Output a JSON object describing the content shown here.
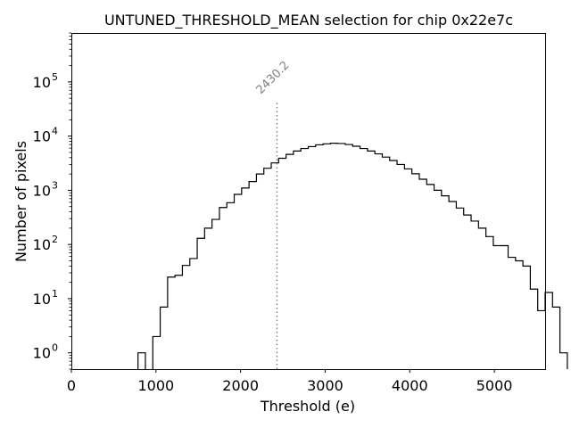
{
  "chart_data": {
    "type": "histogram",
    "title": "UNTUNED_THRESHOLD_MEAN selection for chip 0x22e7c",
    "xlabel": "Threshold (e)",
    "ylabel": "Number of pixels",
    "xlim": [
      0,
      5600
    ],
    "ylim": [
      0.5,
      800000
    ],
    "yscale": "log",
    "grid": false,
    "xticks": [
      0,
      1000,
      2000,
      3000,
      4000,
      5000
    ],
    "xtick_labels": [
      "0",
      "1000",
      "2000",
      "3000",
      "4000",
      "5000"
    ],
    "yticks": [
      1,
      10,
      100,
      1000,
      10000,
      100000
    ],
    "ytick_labels": [
      "10",
      "10",
      "10",
      "10",
      "10",
      "10"
    ],
    "ytick_exponents": [
      "0",
      "1",
      "2",
      "3",
      "4",
      "5"
    ],
    "bin_width": 87.5,
    "bin_start": 0,
    "counts": [
      0,
      0,
      0,
      0,
      0,
      0,
      0,
      0,
      0,
      1,
      0,
      2,
      7,
      25,
      27,
      41,
      55,
      130,
      200,
      290,
      480,
      590,
      840,
      1100,
      1450,
      2000,
      2550,
      3200,
      3900,
      4600,
      5300,
      5900,
      6400,
      6900,
      7200,
      7400,
      7300,
      7000,
      6500,
      5900,
      5300,
      4700,
      4100,
      3550,
      3000,
      2480,
      2020,
      1600,
      1280,
      1000,
      790,
      620,
      470,
      350,
      270,
      200,
      140,
      95,
      95,
      58,
      50,
      40,
      15,
      6,
      13,
      7,
      1,
      0,
      0,
      0,
      0,
      0,
      0,
      0,
      0,
      0,
      0,
      0,
      0,
      0,
      0,
      0,
      0,
      0
    ],
    "annotation": {
      "value": 2430.2,
      "label": "2430.2",
      "line_style": "dotted",
      "color": "#808080"
    }
  }
}
